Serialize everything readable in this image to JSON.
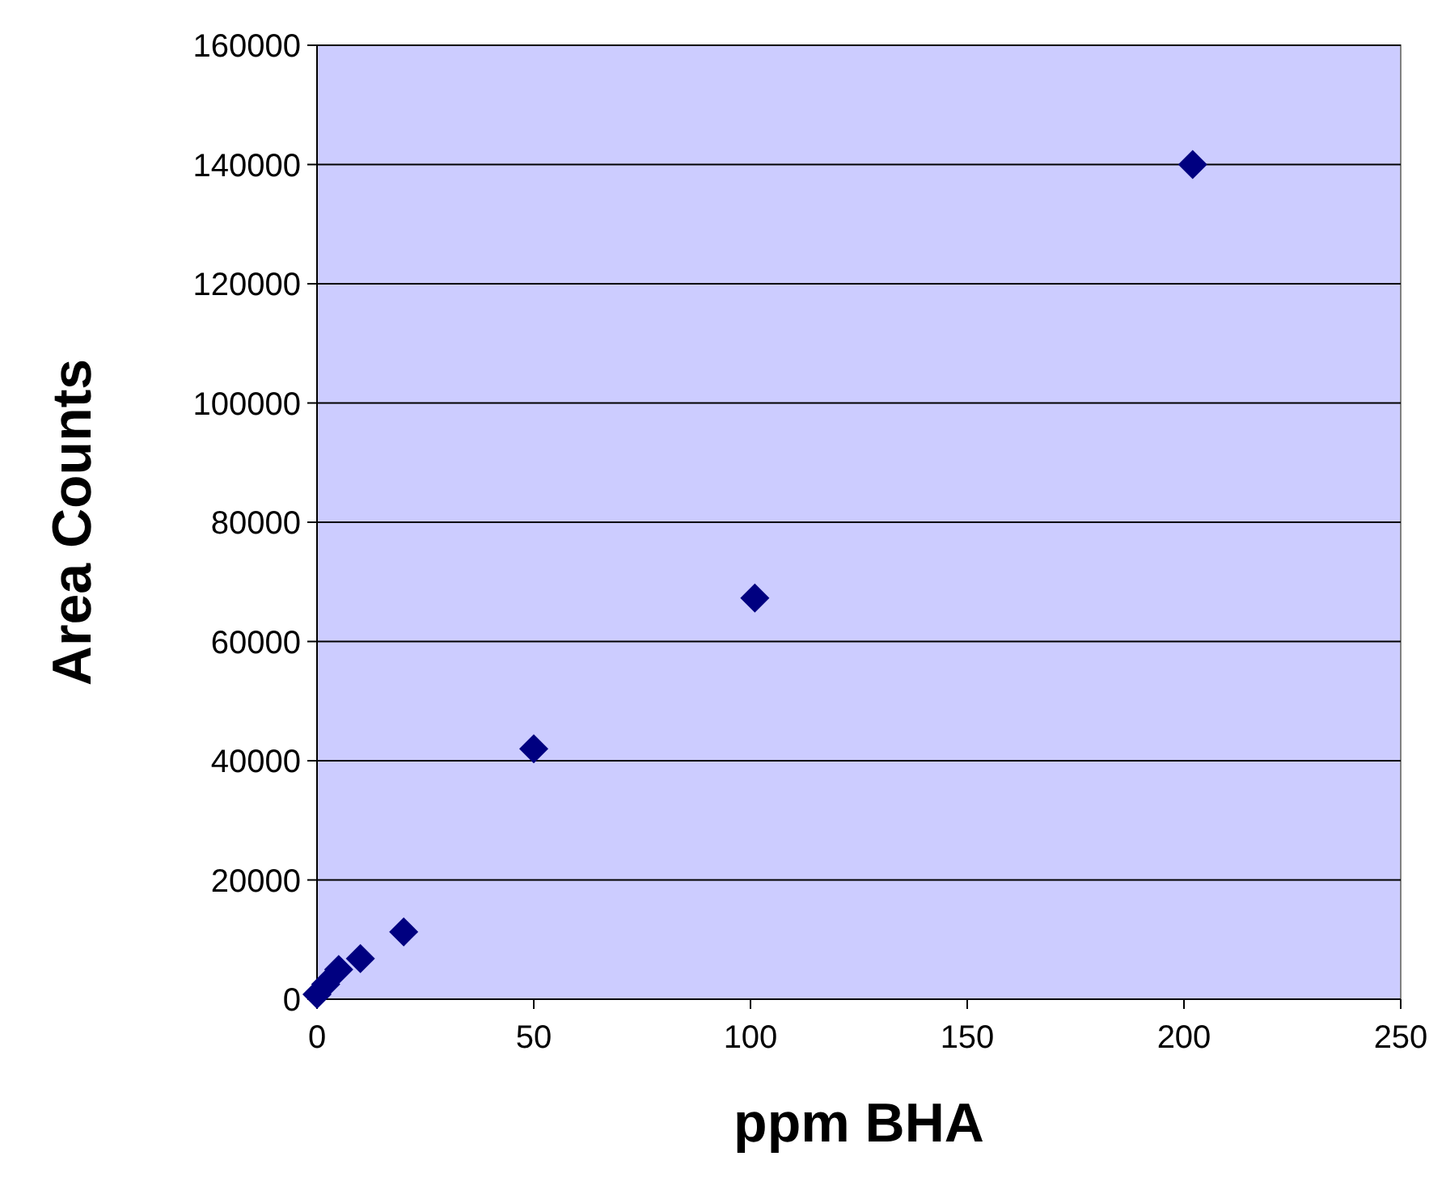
{
  "chart_data": {
    "type": "scatter",
    "xlabel": "ppm BHA",
    "ylabel": "Area Counts",
    "x": [
      0,
      2,
      5,
      10,
      20,
      50,
      101,
      202
    ],
    "series": [
      {
        "color": "#000080",
        "values": [
          800,
          2500,
          5000,
          6800,
          11300,
          42000,
          67300,
          140000
        ]
      }
    ],
    "xlim": [
      0,
      250
    ],
    "xticks": [
      0,
      50,
      100,
      150,
      200,
      250
    ],
    "ylim": [
      0,
      160000
    ],
    "yticks": [
      0,
      20000,
      40000,
      60000,
      80000,
      100000,
      120000,
      140000,
      160000
    ],
    "grid": "y",
    "marker": "diamond"
  }
}
